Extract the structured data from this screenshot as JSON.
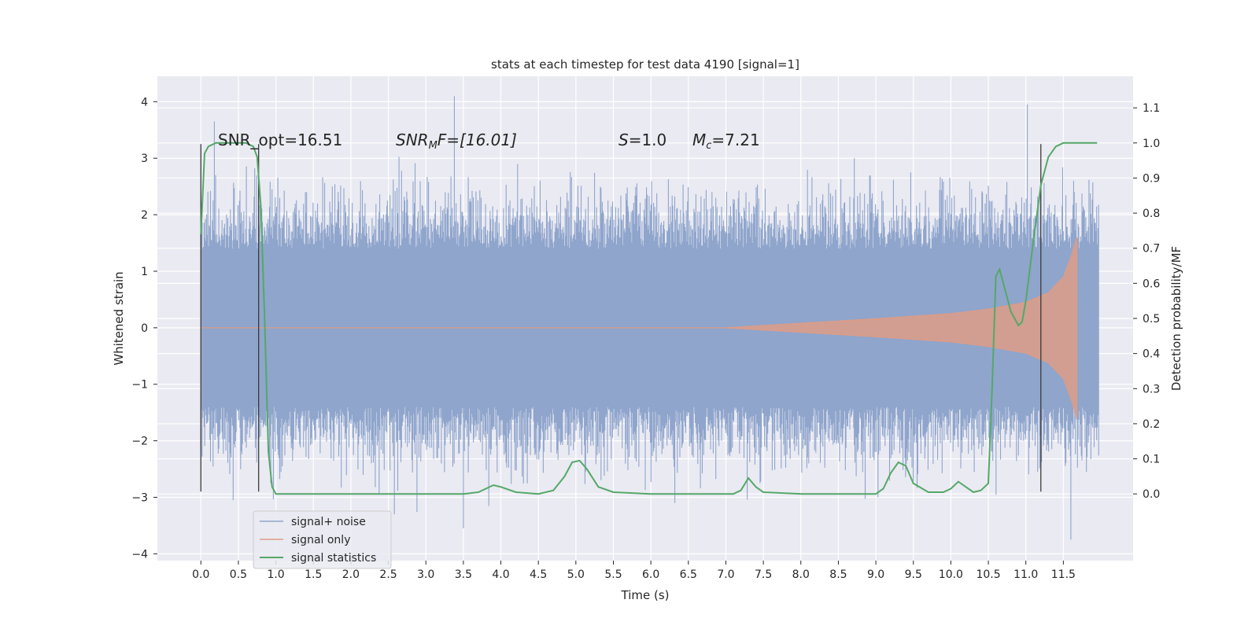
{
  "chart_data": {
    "type": "line",
    "title": "stats at each timestep for test data 4190 [signal=1]",
    "xlabel": "Time (s)",
    "ylabel": "Whitened strain",
    "ylabel_right": "Detection probability/MF",
    "xlim": [
      -0.58,
      12.43
    ],
    "ylim": [
      -4.12,
      4.45
    ],
    "ylim_right": [
      -0.19,
      1.19
    ],
    "x_ticks": [
      "0.0",
      "0.5",
      "1.0",
      "1.5",
      "2.0",
      "2.5",
      "3.0",
      "3.5",
      "4.0",
      "4.5",
      "5.0",
      "5.5",
      "6.0",
      "6.5",
      "7.0",
      "7.5",
      "8.0",
      "8.5",
      "9.0",
      "9.5",
      "10.0",
      "10.5",
      "11.0",
      "11.5"
    ],
    "y_ticks": [
      "4",
      "3",
      "2",
      "1",
      "0",
      "−1",
      "−2",
      "−3",
      "−4"
    ],
    "y_ticks_right": [
      "1.1",
      "1.0",
      "0.9",
      "0.8",
      "0.7",
      "0.6",
      "0.5",
      "0.4",
      "0.3",
      "0.2",
      "0.1",
      "0.0"
    ],
    "grid": true,
    "legend_placement": "lower-left",
    "annotations": {
      "snr_opt": "SNR_opt=16.51",
      "snr_mf_name": "SNR",
      "snr_mf_sub": "M",
      "snr_mf_rest": "F=[16.01]",
      "s_name": "S",
      "s_rest": "=1.0",
      "mc_name": "M",
      "mc_sub": "c",
      "mc_rest": "=7.21"
    },
    "series": [
      {
        "name": "signal+ noise",
        "color": "#8fa5cc",
        "noise_band": 1.4,
        "peaks": [
          [
            0.18,
            3.65
          ],
          [
            3.38,
            4.1
          ],
          [
            11.02,
            3.95
          ],
          [
            0.43,
            -3.05
          ],
          [
            3.5,
            -3.55
          ],
          [
            11.6,
            -3.75
          ],
          [
            2.58,
            -3.3
          ],
          [
            6.32,
            -3.1
          ]
        ],
        "x_range": [
          0.0,
          11.97
        ]
      },
      {
        "name": "signal only",
        "color": "#dd9c86",
        "x_range": [
          0.0,
          11.68
        ],
        "envelope": [
          [
            0.0,
            0.0
          ],
          [
            7.0,
            0.0
          ],
          [
            8.0,
            0.08
          ],
          [
            9.0,
            0.16
          ],
          [
            10.0,
            0.25
          ],
          [
            10.5,
            0.33
          ],
          [
            11.0,
            0.45
          ],
          [
            11.3,
            0.62
          ],
          [
            11.5,
            0.9
          ],
          [
            11.6,
            1.25
          ],
          [
            11.68,
            1.6
          ]
        ]
      },
      {
        "name": "signal statistics",
        "color": "#55a868",
        "axis": "right",
        "x": [
          0.0,
          0.05,
          0.1,
          0.2,
          0.3,
          0.4,
          0.5,
          0.6,
          0.7,
          0.75,
          0.8,
          0.85,
          0.9,
          0.95,
          1.0,
          1.5,
          2.0,
          2.5,
          3.0,
          3.5,
          3.7,
          3.8,
          3.9,
          4.0,
          4.2,
          4.5,
          4.7,
          4.85,
          4.95,
          5.05,
          5.15,
          5.3,
          5.5,
          6.0,
          6.5,
          7.0,
          7.1,
          7.2,
          7.3,
          7.4,
          7.5,
          8.0,
          8.5,
          9.0,
          9.1,
          9.2,
          9.3,
          9.4,
          9.5,
          9.7,
          9.9,
          10.0,
          10.1,
          10.2,
          10.3,
          10.4,
          10.5,
          10.55,
          10.6,
          10.65,
          10.7,
          10.8,
          10.9,
          10.95,
          11.0,
          11.1,
          11.2,
          11.3,
          11.4,
          11.5,
          11.6,
          11.8,
          11.95
        ],
        "values": [
          0.74,
          0.97,
          0.99,
          1.0,
          1.0,
          1.0,
          1.0,
          1.0,
          0.99,
          0.96,
          0.82,
          0.5,
          0.12,
          0.02,
          0.0,
          0.0,
          0.0,
          0.0,
          0.0,
          0.0,
          0.005,
          0.015,
          0.025,
          0.02,
          0.005,
          0.0,
          0.01,
          0.05,
          0.09,
          0.095,
          0.07,
          0.02,
          0.005,
          0.0,
          0.0,
          0.0,
          0.0,
          0.01,
          0.045,
          0.02,
          0.005,
          0.0,
          0.0,
          0.0,
          0.015,
          0.06,
          0.09,
          0.08,
          0.03,
          0.005,
          0.005,
          0.015,
          0.035,
          0.02,
          0.005,
          0.01,
          0.03,
          0.3,
          0.62,
          0.64,
          0.6,
          0.52,
          0.48,
          0.49,
          0.55,
          0.72,
          0.88,
          0.96,
          0.99,
          1.0,
          1.0,
          1.0,
          1.0
        ]
      }
    ],
    "vlines": [
      {
        "x": 0.0,
        "y": [
          -2.9,
          3.25
        ]
      },
      {
        "x": 0.77,
        "y": [
          -2.9,
          3.25
        ]
      },
      {
        "x": 11.2,
        "y": [
          -2.9,
          3.25
        ]
      }
    ]
  }
}
